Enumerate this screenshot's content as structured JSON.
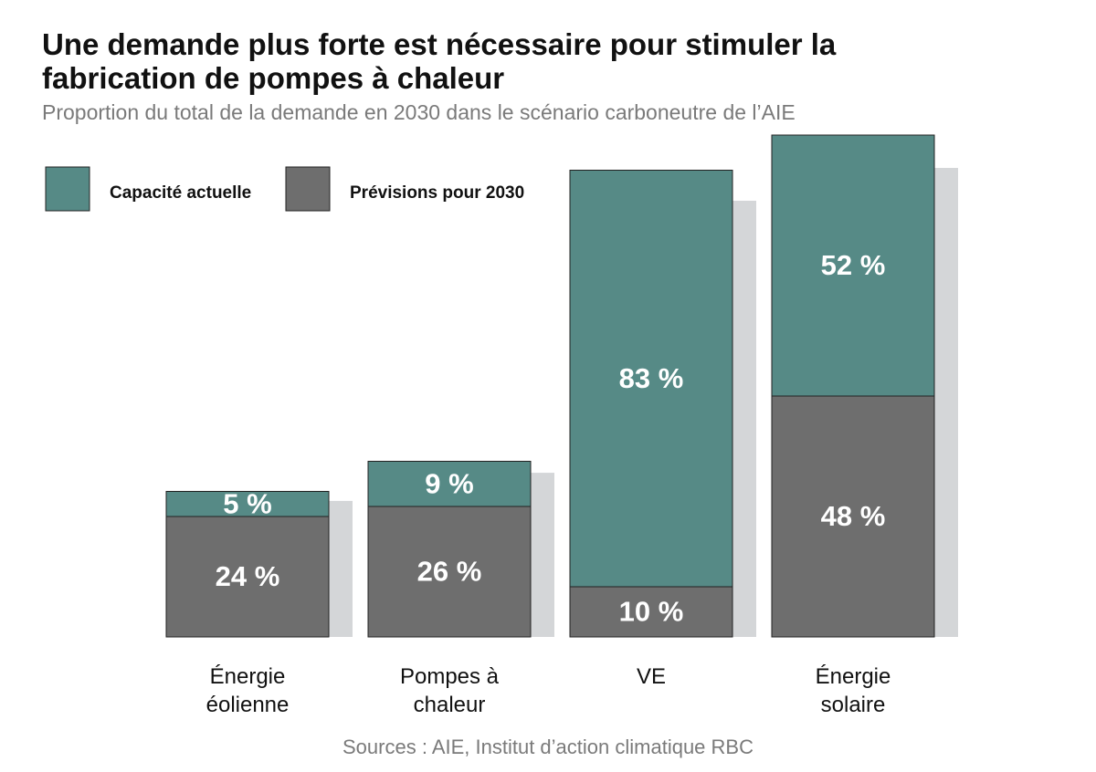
{
  "chart_data": {
    "type": "stacked_bar",
    "title": "Une demande plus forte est nécessaire pour stimuler la fabrication de pompes à chaleur",
    "subtitle": "Proportion du total de la demande en 2030 dans le scénario carboneutre de l’AIE",
    "source": "Sources : AIE, Institut d’action climatique RBC",
    "categories": [
      "Énergie éolienne",
      "Pompes à chaleur",
      "VE",
      "Énergie solaire"
    ],
    "series": [
      {
        "name": "Capacité actuelle",
        "color": "#568a86",
        "values": [
          5,
          9,
          83,
          52
        ],
        "value_labels": [
          "5 %",
          "9 %",
          "83 %",
          "52 %"
        ]
      },
      {
        "name": "Prévisions pour 2030",
        "color": "#6e6e6e",
        "values": [
          24,
          26,
          10,
          48
        ],
        "value_labels": [
          "24 %",
          "26 %",
          "10 %",
          "48 %"
        ]
      }
    ]
  }
}
